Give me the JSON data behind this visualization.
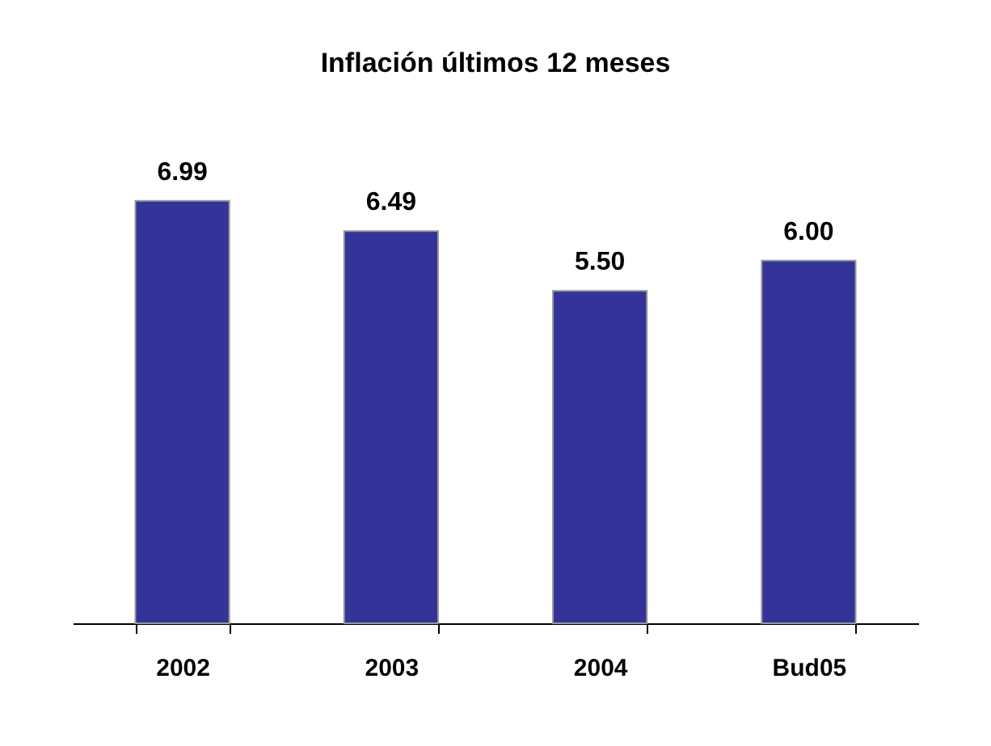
{
  "chart_data": {
    "type": "bar",
    "title": "Inflación últimos 12 meses",
    "categories": [
      "2002",
      "2003",
      "2004",
      "Bud05"
    ],
    "values": [
      6.99,
      6.49,
      5.5,
      6.0
    ],
    "color": "#333399",
    "value_labels": [
      "6.99",
      "6.49",
      "5.50",
      "6.00"
    ],
    "grid": false
  }
}
